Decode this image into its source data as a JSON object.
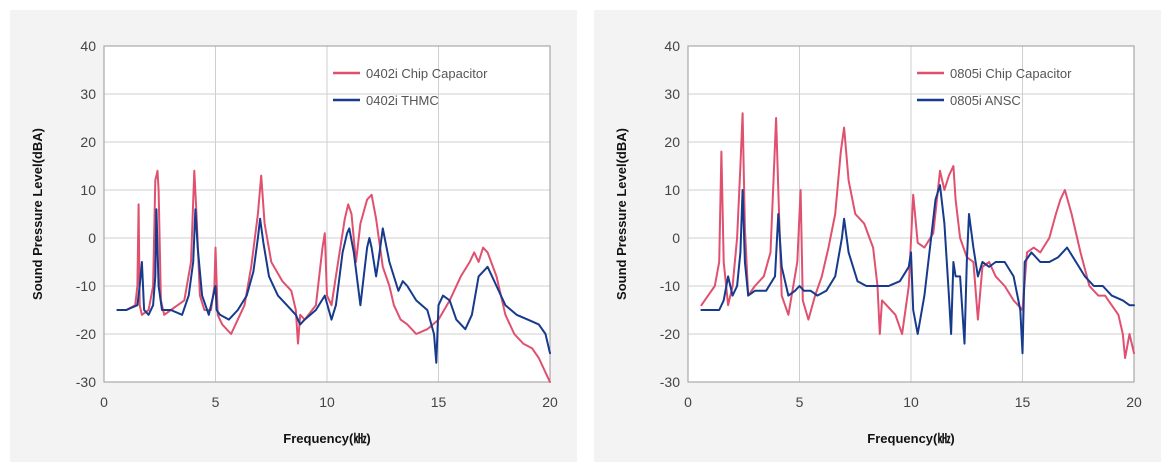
{
  "colors": {
    "pink": "#e0506f",
    "navy": "#163a8c",
    "grid": "#cfcfcf",
    "panel": "#f3f3f3"
  },
  "chart_data": [
    {
      "type": "line",
      "title": "",
      "xlabel": "Frequency(㎑)",
      "ylabel": "Sound Pressure Level(dBA)",
      "xlim": [
        0,
        20
      ],
      "ylim": [
        -30,
        40
      ],
      "xticks": [
        "0",
        "5",
        "10",
        "15",
        "20"
      ],
      "yticks": [
        "40",
        "30",
        "20",
        "10",
        "0",
        "-10",
        "-20",
        "-30"
      ],
      "grid": true,
      "legend_position": "top-right",
      "series": [
        {
          "name": "0402i Chip Capacitor",
          "color": "#e0506f",
          "x": [
            0.6,
            1.0,
            1.4,
            1.5,
            1.55,
            1.6,
            1.7,
            2.0,
            2.2,
            2.3,
            2.4,
            2.45,
            2.55,
            2.7,
            3.0,
            3.3,
            3.6,
            3.9,
            4.05,
            4.15,
            4.3,
            4.5,
            4.8,
            4.95,
            5.0,
            5.1,
            5.3,
            5.7,
            6.0,
            6.3,
            6.6,
            6.9,
            7.05,
            7.2,
            7.5,
            8.0,
            8.4,
            8.6,
            8.7,
            8.8,
            9.0,
            9.5,
            9.8,
            9.9,
            10.0,
            10.2,
            10.5,
            10.8,
            10.95,
            11.1,
            11.3,
            11.5,
            11.8,
            12.0,
            12.2,
            12.5,
            12.8,
            13.0,
            13.3,
            13.6,
            14.0,
            14.5,
            15.0,
            15.5,
            16.0,
            16.4,
            16.6,
            16.8,
            17.0,
            17.2,
            17.6,
            18.0,
            18.4,
            18.8,
            19.2,
            19.5,
            19.8,
            20.0
          ],
          "y": [
            -15,
            -15,
            -14,
            -10,
            7,
            -14,
            -16,
            -15,
            -10,
            12,
            14,
            10,
            -13,
            -16,
            -15,
            -14,
            -13,
            -5,
            14,
            5,
            -12,
            -15,
            -15,
            -10,
            -2,
            -16,
            -18,
            -20,
            -17,
            -14,
            -6,
            5,
            13,
            3,
            -5,
            -9,
            -11,
            -15,
            -22,
            -16,
            -17,
            -14,
            -2,
            1,
            -12,
            -14,
            -5,
            4,
            7,
            5,
            -5,
            3,
            8,
            9,
            4,
            -6,
            -10,
            -14,
            -17,
            -18,
            -20,
            -19,
            -17,
            -13,
            -8,
            -5,
            -3,
            -5,
            -2,
            -3,
            -8,
            -16,
            -20,
            -22,
            -23,
            -25,
            -28,
            -30
          ]
        },
        {
          "name": "0402i THMC",
          "color": "#163a8c",
          "x": [
            0.6,
            1.0,
            1.5,
            1.6,
            1.7,
            1.8,
            2.0,
            2.2,
            2.3,
            2.35,
            2.45,
            2.6,
            3.0,
            3.5,
            3.8,
            4.0,
            4.1,
            4.2,
            4.4,
            4.7,
            5.0,
            5.05,
            5.2,
            5.6,
            6.0,
            6.4,
            6.7,
            6.9,
            7.0,
            7.15,
            7.4,
            7.8,
            8.2,
            8.6,
            8.8,
            9.0,
            9.5,
            9.9,
            10.2,
            10.4,
            10.7,
            10.9,
            11.0,
            11.2,
            11.5,
            11.8,
            11.9,
            12.0,
            12.2,
            12.3,
            12.5,
            12.8,
            13.2,
            13.4,
            13.6,
            14.0,
            14.5,
            14.8,
            14.9,
            15.0,
            15.2,
            15.5,
            15.8,
            16.2,
            16.5,
            16.8,
            17.2,
            17.6,
            18.0,
            18.5,
            19.0,
            19.5,
            19.8,
            20.0
          ],
          "y": [
            -15,
            -15,
            -14,
            -10,
            -5,
            -15,
            -16,
            -14,
            -8,
            6,
            -10,
            -15,
            -15,
            -16,
            -12,
            -5,
            6,
            -2,
            -12,
            -16,
            -10,
            -15,
            -16,
            -17,
            -15,
            -12,
            -7,
            0,
            4,
            -1,
            -8,
            -12,
            -14,
            -16,
            -18,
            -17,
            -15,
            -12,
            -17,
            -14,
            -3,
            1,
            2,
            -3,
            -14,
            -2,
            0,
            -2,
            -8,
            -5,
            2,
            -5,
            -11,
            -9,
            -10,
            -13,
            -15,
            -20,
            -26,
            -14,
            -12,
            -13,
            -17,
            -19,
            -16,
            -8,
            -6,
            -10,
            -14,
            -16,
            -17,
            -18,
            -20,
            -24
          ]
        }
      ]
    },
    {
      "type": "line",
      "title": "",
      "xlabel": "Frequency(㎑)",
      "ylabel": "Sound Pressure Level(dBA)",
      "xlim": [
        0,
        20
      ],
      "ylim": [
        -30,
        40
      ],
      "xticks": [
        "0",
        "5",
        "10",
        "15",
        "20"
      ],
      "yticks": [
        "40",
        "30",
        "20",
        "10",
        "0",
        "-10",
        "-20",
        "-30"
      ],
      "grid": true,
      "legend_position": "top-right",
      "series": [
        {
          "name": "0805i Chip Capacitor",
          "color": "#e0506f",
          "x": [
            0.6,
            0.9,
            1.2,
            1.4,
            1.5,
            1.6,
            1.8,
            2.0,
            2.2,
            2.35,
            2.45,
            2.55,
            2.7,
            3.0,
            3.4,
            3.7,
            3.95,
            4.05,
            4.2,
            4.5,
            4.9,
            5.05,
            5.15,
            5.4,
            5.7,
            6.0,
            6.3,
            6.6,
            6.85,
            7.0,
            7.2,
            7.5,
            7.9,
            8.3,
            8.5,
            8.6,
            8.7,
            8.9,
            9.3,
            9.6,
            9.9,
            10.1,
            10.3,
            10.6,
            11.0,
            11.3,
            11.5,
            11.7,
            11.9,
            12.0,
            12.2,
            12.5,
            12.8,
            13.0,
            13.2,
            13.5,
            13.8,
            14.2,
            14.6,
            15.0,
            15.2,
            15.5,
            15.8,
            16.2,
            16.5,
            16.7,
            16.9,
            17.2,
            17.6,
            18.0,
            18.4,
            18.7,
            19.0,
            19.3,
            19.5,
            19.6,
            19.8,
            20.0
          ],
          "y": [
            -14,
            -12,
            -10,
            -5,
            18,
            -5,
            -14,
            -10,
            0,
            15,
            26,
            2,
            -12,
            -10,
            -8,
            -3,
            25,
            10,
            -12,
            -16,
            -5,
            10,
            -13,
            -17,
            -12,
            -8,
            -2,
            5,
            18,
            23,
            12,
            5,
            3,
            -2,
            -10,
            -20,
            -13,
            -14,
            -16,
            -20,
            -10,
            9,
            -1,
            -2,
            1,
            14,
            10,
            13,
            15,
            8,
            0,
            -4,
            -5,
            -17,
            -6,
            -5,
            -8,
            -10,
            -13,
            -15,
            -3,
            -2,
            -3,
            0,
            5,
            8,
            10,
            5,
            -3,
            -10,
            -12,
            -12,
            -14,
            -16,
            -20,
            -25,
            -20,
            -24
          ]
        },
        {
          "name": "0805i ANSC",
          "color": "#163a8c",
          "x": [
            0.6,
            1.0,
            1.4,
            1.6,
            1.8,
            2.0,
            2.2,
            2.35,
            2.45,
            2.55,
            2.7,
            3.0,
            3.5,
            3.9,
            4.05,
            4.2,
            4.5,
            4.8,
            5.0,
            5.2,
            5.5,
            5.8,
            6.2,
            6.6,
            6.9,
            7.0,
            7.2,
            7.6,
            8.0,
            8.5,
            9.0,
            9.5,
            9.9,
            10.0,
            10.1,
            10.3,
            10.6,
            10.9,
            11.1,
            11.3,
            11.5,
            11.7,
            11.8,
            11.9,
            12.0,
            12.2,
            12.4,
            12.5,
            12.6,
            12.8,
            13.0,
            13.2,
            13.5,
            13.8,
            14.2,
            14.6,
            14.9,
            15.0,
            15.1,
            15.4,
            15.8,
            16.2,
            16.6,
            17.0,
            17.4,
            17.8,
            18.2,
            18.6,
            19.0,
            19.5,
            19.8,
            20.0
          ],
          "y": [
            -15,
            -15,
            -15,
            -13,
            -8,
            -12,
            -10,
            -3,
            10,
            -5,
            -12,
            -11,
            -11,
            -8,
            5,
            -6,
            -12,
            -11,
            -10,
            -11,
            -11,
            -12,
            -11,
            -8,
            0,
            4,
            -3,
            -9,
            -10,
            -10,
            -10,
            -9,
            -6,
            -3,
            -15,
            -20,
            -12,
            0,
            8,
            11,
            3,
            -12,
            -20,
            -5,
            -8,
            -8,
            -22,
            -5,
            5,
            -2,
            -8,
            -5,
            -6,
            -5,
            -5,
            -8,
            -15,
            -24,
            -5,
            -3,
            -5,
            -5,
            -4,
            -2,
            -5,
            -8,
            -10,
            -10,
            -12,
            -13,
            -14,
            -14
          ]
        }
      ]
    }
  ]
}
